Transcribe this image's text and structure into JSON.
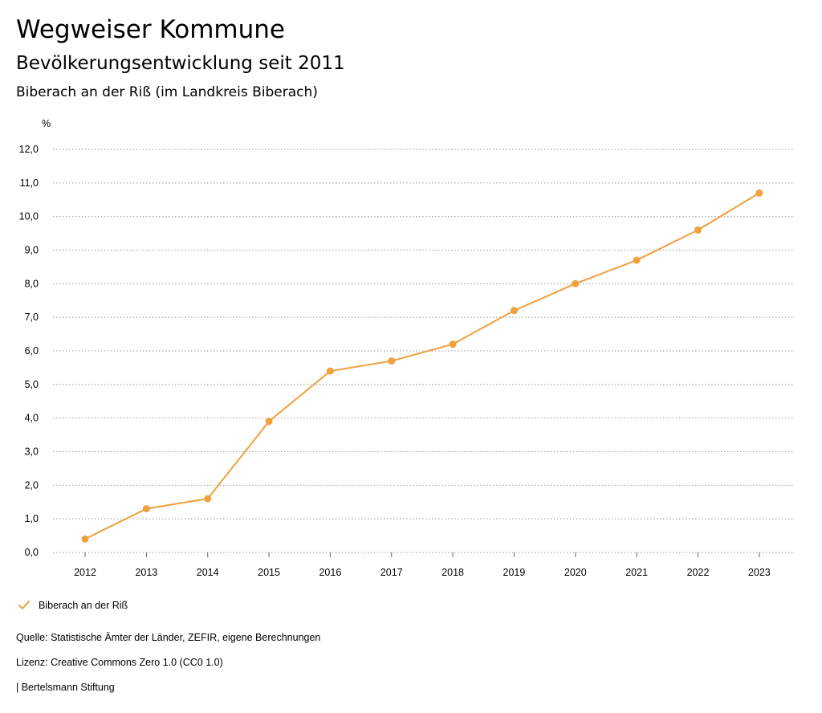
{
  "header": {
    "title": "Wegweiser Kommune",
    "subtitle": "Bevölkerungsentwicklung seit 2011",
    "region": "Biberach an der Riß (im Landkreis Biberach)"
  },
  "chart_data": {
    "type": "line",
    "ylabel": "%",
    "xlabel": "",
    "ylim": [
      0,
      12
    ],
    "y_ticks": [
      "0,0",
      "1,0",
      "2,0",
      "3,0",
      "4,0",
      "5,0",
      "6,0",
      "7,0",
      "8,0",
      "9,0",
      "10,0",
      "11,0",
      "12,0"
    ],
    "x": [
      "2012",
      "2013",
      "2014",
      "2015",
      "2016",
      "2017",
      "2018",
      "2019",
      "2020",
      "2021",
      "2022",
      "2023"
    ],
    "series": [
      {
        "name": "Biberach an der Riß",
        "color": "#f0a03c",
        "values": [
          0.4,
          1.3,
          1.6,
          3.9,
          5.4,
          5.7,
          6.2,
          7.2,
          8.0,
          8.7,
          9.6,
          10.7
        ]
      }
    ],
    "grid": "horizontal dotted",
    "legend_position": "bottom-left",
    "markers": "circle"
  },
  "legend": {
    "label": "Biberach an der Riß"
  },
  "footer": {
    "source": "Quelle: Statistische Ämter der Länder, ZEFIR, eigene Berechnungen",
    "license": "Lizenz: Creative Commons Zero 1.0 (CC0 1.0)",
    "publisher": "| Bertelsmann Stiftung"
  }
}
